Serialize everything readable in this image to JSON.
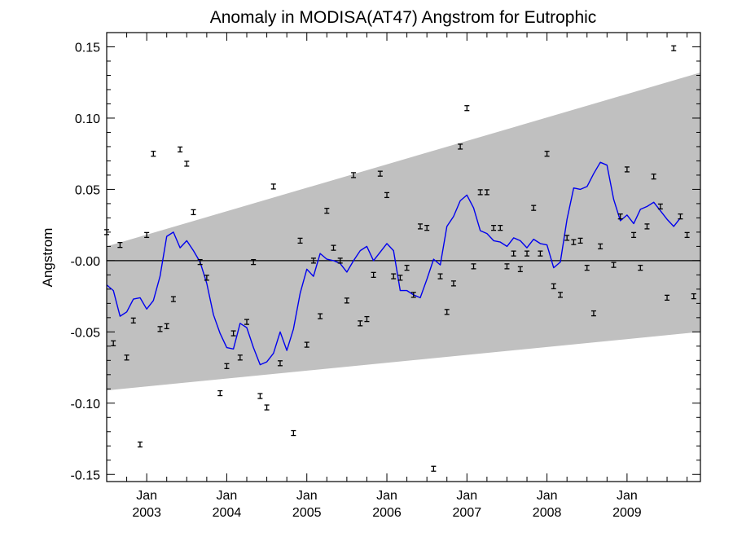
{
  "chart_data": {
    "type": "scatter",
    "title": "Anomaly in MODISA(AT47) Angstrom for Eutrophic",
    "xlabel": "",
    "ylabel": "Angstrom",
    "xlim": [
      "2002-07",
      "2009-12"
    ],
    "ylim": [
      -0.155,
      0.16
    ],
    "grid": false,
    "y_ticks": [
      {
        "value": 0.15,
        "label": "0.15"
      },
      {
        "value": 0.1,
        "label": "0.10"
      },
      {
        "value": 0.05,
        "label": "0.05"
      },
      {
        "value": 0.0,
        "label": "-0.00"
      },
      {
        "value": -0.05,
        "label": "-0.05"
      },
      {
        "value": -0.1,
        "label": "-0.10"
      },
      {
        "value": -0.15,
        "label": "-0.15"
      }
    ],
    "x_ticks": [
      {
        "date": "2003-01",
        "month": "Jan",
        "year": "2003"
      },
      {
        "date": "2004-01",
        "month": "Jan",
        "year": "2004"
      },
      {
        "date": "2005-01",
        "month": "Jan",
        "year": "2005"
      },
      {
        "date": "2006-01",
        "month": "Jan",
        "year": "2006"
      },
      {
        "date": "2007-01",
        "month": "Jan",
        "year": "2007"
      },
      {
        "date": "2008-01",
        "month": "Jan",
        "year": "2008"
      },
      {
        "date": "2009-01",
        "month": "Jan",
        "year": "2009"
      }
    ],
    "band": {
      "start": {
        "x": "2002-07",
        "lower": -0.091,
        "upper": 0.01
      },
      "end": {
        "x": "2009-12",
        "lower": -0.05,
        "upper": 0.132
      }
    },
    "zero_line": 0.0,
    "colors": {
      "band": "#c0c0c0",
      "smooth_line": "#0000ee",
      "points": "#000000",
      "zero_line": "#000000"
    },
    "series": [
      {
        "kind": "monthly_anomaly_points",
        "points": [
          {
            "x": "2002-07",
            "y": 0.02
          },
          {
            "x": "2002-08",
            "y": -0.058
          },
          {
            "x": "2002-09",
            "y": 0.011
          },
          {
            "x": "2002-10",
            "y": -0.068
          },
          {
            "x": "2002-11",
            "y": -0.042
          },
          {
            "x": "2002-12",
            "y": -0.129
          },
          {
            "x": "2003-01",
            "y": 0.018
          },
          {
            "x": "2003-02",
            "y": 0.075
          },
          {
            "x": "2003-03",
            "y": -0.048
          },
          {
            "x": "2003-04",
            "y": -0.046
          },
          {
            "x": "2003-05",
            "y": -0.027
          },
          {
            "x": "2003-06",
            "y": 0.078
          },
          {
            "x": "2003-07",
            "y": 0.068
          },
          {
            "x": "2003-08",
            "y": 0.034
          },
          {
            "x": "2003-09",
            "y": -0.001
          },
          {
            "x": "2003-10",
            "y": -0.012
          },
          {
            "x": "2003-12",
            "y": -0.093
          },
          {
            "x": "2004-01",
            "y": -0.074
          },
          {
            "x": "2004-02",
            "y": -0.051
          },
          {
            "x": "2004-03",
            "y": -0.068
          },
          {
            "x": "2004-04",
            "y": -0.043
          },
          {
            "x": "2004-05",
            "y": -0.001
          },
          {
            "x": "2004-06",
            "y": -0.095
          },
          {
            "x": "2004-07",
            "y": -0.103
          },
          {
            "x": "2004-08",
            "y": 0.052
          },
          {
            "x": "2004-09",
            "y": -0.072
          },
          {
            "x": "2004-11",
            "y": -0.121
          },
          {
            "x": "2004-12",
            "y": 0.014
          },
          {
            "x": "2005-01",
            "y": -0.059
          },
          {
            "x": "2005-02",
            "y": 0.0
          },
          {
            "x": "2005-03",
            "y": -0.039
          },
          {
            "x": "2005-04",
            "y": 0.035
          },
          {
            "x": "2005-05",
            "y": 0.009
          },
          {
            "x": "2005-06",
            "y": 0.0
          },
          {
            "x": "2005-07",
            "y": -0.028
          },
          {
            "x": "2005-08",
            "y": 0.06
          },
          {
            "x": "2005-09",
            "y": -0.044
          },
          {
            "x": "2005-10",
            "y": -0.041
          },
          {
            "x": "2005-11",
            "y": -0.01
          },
          {
            "x": "2005-12",
            "y": 0.061
          },
          {
            "x": "2006-01",
            "y": 0.046
          },
          {
            "x": "2006-02",
            "y": -0.011
          },
          {
            "x": "2006-03",
            "y": -0.012
          },
          {
            "x": "2006-04",
            "y": -0.005
          },
          {
            "x": "2006-05",
            "y": -0.024
          },
          {
            "x": "2006-06",
            "y": 0.024
          },
          {
            "x": "2006-07",
            "y": 0.023
          },
          {
            "x": "2006-08",
            "y": -0.146
          },
          {
            "x": "2006-09",
            "y": -0.011
          },
          {
            "x": "2006-10",
            "y": -0.036
          },
          {
            "x": "2006-11",
            "y": -0.016
          },
          {
            "x": "2006-12",
            "y": 0.08
          },
          {
            "x": "2007-01",
            "y": 0.107
          },
          {
            "x": "2007-02",
            "y": -0.004
          },
          {
            "x": "2007-03",
            "y": 0.048
          },
          {
            "x": "2007-04",
            "y": 0.048
          },
          {
            "x": "2007-05",
            "y": 0.023
          },
          {
            "x": "2007-06",
            "y": 0.023
          },
          {
            "x": "2007-07",
            "y": -0.004
          },
          {
            "x": "2007-08",
            "y": 0.005
          },
          {
            "x": "2007-09",
            "y": -0.006
          },
          {
            "x": "2007-10",
            "y": 0.005
          },
          {
            "x": "2007-11",
            "y": 0.037
          },
          {
            "x": "2007-12",
            "y": 0.005
          },
          {
            "x": "2008-01",
            "y": 0.075
          },
          {
            "x": "2008-02",
            "y": -0.018
          },
          {
            "x": "2008-03",
            "y": -0.024
          },
          {
            "x": "2008-04",
            "y": 0.016
          },
          {
            "x": "2008-05",
            "y": 0.013
          },
          {
            "x": "2008-06",
            "y": 0.014
          },
          {
            "x": "2008-07",
            "y": -0.005
          },
          {
            "x": "2008-08",
            "y": -0.037
          },
          {
            "x": "2008-09",
            "y": 0.01
          },
          {
            "x": "2008-11",
            "y": -0.003
          },
          {
            "x": "2008-12",
            "y": 0.031
          },
          {
            "x": "2009-01",
            "y": 0.064
          },
          {
            "x": "2009-02",
            "y": 0.018
          },
          {
            "x": "2009-03",
            "y": -0.005
          },
          {
            "x": "2009-04",
            "y": 0.024
          },
          {
            "x": "2009-05",
            "y": 0.059
          },
          {
            "x": "2009-06",
            "y": 0.038
          },
          {
            "x": "2009-07",
            "y": -0.026
          },
          {
            "x": "2009-08",
            "y": 0.149
          },
          {
            "x": "2009-09",
            "y": 0.031
          },
          {
            "x": "2009-10",
            "y": 0.018
          },
          {
            "x": "2009-11",
            "y": -0.025
          }
        ]
      },
      {
        "kind": "running_mean_line",
        "points": [
          {
            "x": "2002-07",
            "y": -0.017
          },
          {
            "x": "2002-08",
            "y": -0.021
          },
          {
            "x": "2002-09",
            "y": -0.039
          },
          {
            "x": "2002-10",
            "y": -0.036
          },
          {
            "x": "2002-11",
            "y": -0.027
          },
          {
            "x": "2002-12",
            "y": -0.026
          },
          {
            "x": "2003-01",
            "y": -0.034
          },
          {
            "x": "2003-02",
            "y": -0.028
          },
          {
            "x": "2003-03",
            "y": -0.011
          },
          {
            "x": "2003-04",
            "y": 0.017
          },
          {
            "x": "2003-05",
            "y": 0.02
          },
          {
            "x": "2003-06",
            "y": 0.009
          },
          {
            "x": "2003-07",
            "y": 0.014
          },
          {
            "x": "2003-08",
            "y": 0.007
          },
          {
            "x": "2003-09",
            "y": -0.001
          },
          {
            "x": "2003-10",
            "y": -0.016
          },
          {
            "x": "2003-11",
            "y": -0.038
          },
          {
            "x": "2003-12",
            "y": -0.051
          },
          {
            "x": "2004-01",
            "y": -0.061
          },
          {
            "x": "2004-02",
            "y": -0.062
          },
          {
            "x": "2004-03",
            "y": -0.044
          },
          {
            "x": "2004-04",
            "y": -0.047
          },
          {
            "x": "2004-05",
            "y": -0.061
          },
          {
            "x": "2004-06",
            "y": -0.073
          },
          {
            "x": "2004-07",
            "y": -0.071
          },
          {
            "x": "2004-08",
            "y": -0.065
          },
          {
            "x": "2004-09",
            "y": -0.05
          },
          {
            "x": "2004-10",
            "y": -0.063
          },
          {
            "x": "2004-11",
            "y": -0.048
          },
          {
            "x": "2004-12",
            "y": -0.023
          },
          {
            "x": "2005-01",
            "y": -0.006
          },
          {
            "x": "2005-02",
            "y": -0.011
          },
          {
            "x": "2005-03",
            "y": 0.005
          },
          {
            "x": "2005-04",
            "y": 0.001
          },
          {
            "x": "2005-05",
            "y": 0.0
          },
          {
            "x": "2005-06",
            "y": -0.002
          },
          {
            "x": "2005-07",
            "y": -0.008
          },
          {
            "x": "2005-08",
            "y": 0.0
          },
          {
            "x": "2005-09",
            "y": 0.007
          },
          {
            "x": "2005-10",
            "y": 0.01
          },
          {
            "x": "2005-11",
            "y": 0.0
          },
          {
            "x": "2005-12",
            "y": 0.006
          },
          {
            "x": "2006-01",
            "y": 0.012
          },
          {
            "x": "2006-02",
            "y": 0.007
          },
          {
            "x": "2006-03",
            "y": -0.021
          },
          {
            "x": "2006-04",
            "y": -0.021
          },
          {
            "x": "2006-05",
            "y": -0.024
          },
          {
            "x": "2006-06",
            "y": -0.026
          },
          {
            "x": "2006-07",
            "y": -0.013
          },
          {
            "x": "2006-08",
            "y": 0.001
          },
          {
            "x": "2006-09",
            "y": -0.003
          },
          {
            "x": "2006-10",
            "y": 0.024
          },
          {
            "x": "2006-11",
            "y": 0.031
          },
          {
            "x": "2006-12",
            "y": 0.042
          },
          {
            "x": "2007-01",
            "y": 0.046
          },
          {
            "x": "2007-02",
            "y": 0.037
          },
          {
            "x": "2007-03",
            "y": 0.021
          },
          {
            "x": "2007-04",
            "y": 0.019
          },
          {
            "x": "2007-05",
            "y": 0.014
          },
          {
            "x": "2007-06",
            "y": 0.013
          },
          {
            "x": "2007-07",
            "y": 0.01
          },
          {
            "x": "2007-08",
            "y": 0.016
          },
          {
            "x": "2007-09",
            "y": 0.014
          },
          {
            "x": "2007-10",
            "y": 0.009
          },
          {
            "x": "2007-11",
            "y": 0.015
          },
          {
            "x": "2007-12",
            "y": 0.012
          },
          {
            "x": "2008-01",
            "y": 0.011
          },
          {
            "x": "2008-02",
            "y": -0.005
          },
          {
            "x": "2008-03",
            "y": -0.001
          },
          {
            "x": "2008-04",
            "y": 0.029
          },
          {
            "x": "2008-05",
            "y": 0.051
          },
          {
            "x": "2008-06",
            "y": 0.05
          },
          {
            "x": "2008-07",
            "y": 0.052
          },
          {
            "x": "2008-08",
            "y": 0.061
          },
          {
            "x": "2008-09",
            "y": 0.069
          },
          {
            "x": "2008-10",
            "y": 0.067
          },
          {
            "x": "2008-11",
            "y": 0.043
          },
          {
            "x": "2008-12",
            "y": 0.028
          },
          {
            "x": "2009-01",
            "y": 0.032
          },
          {
            "x": "2009-02",
            "y": 0.026
          },
          {
            "x": "2009-03",
            "y": 0.036
          },
          {
            "x": "2009-04",
            "y": 0.038
          },
          {
            "x": "2009-05",
            "y": 0.041
          },
          {
            "x": "2009-06",
            "y": 0.035
          },
          {
            "x": "2009-07",
            "y": 0.029
          },
          {
            "x": "2009-08",
            "y": 0.024
          },
          {
            "x": "2009-09",
            "y": 0.03
          }
        ]
      }
    ]
  }
}
